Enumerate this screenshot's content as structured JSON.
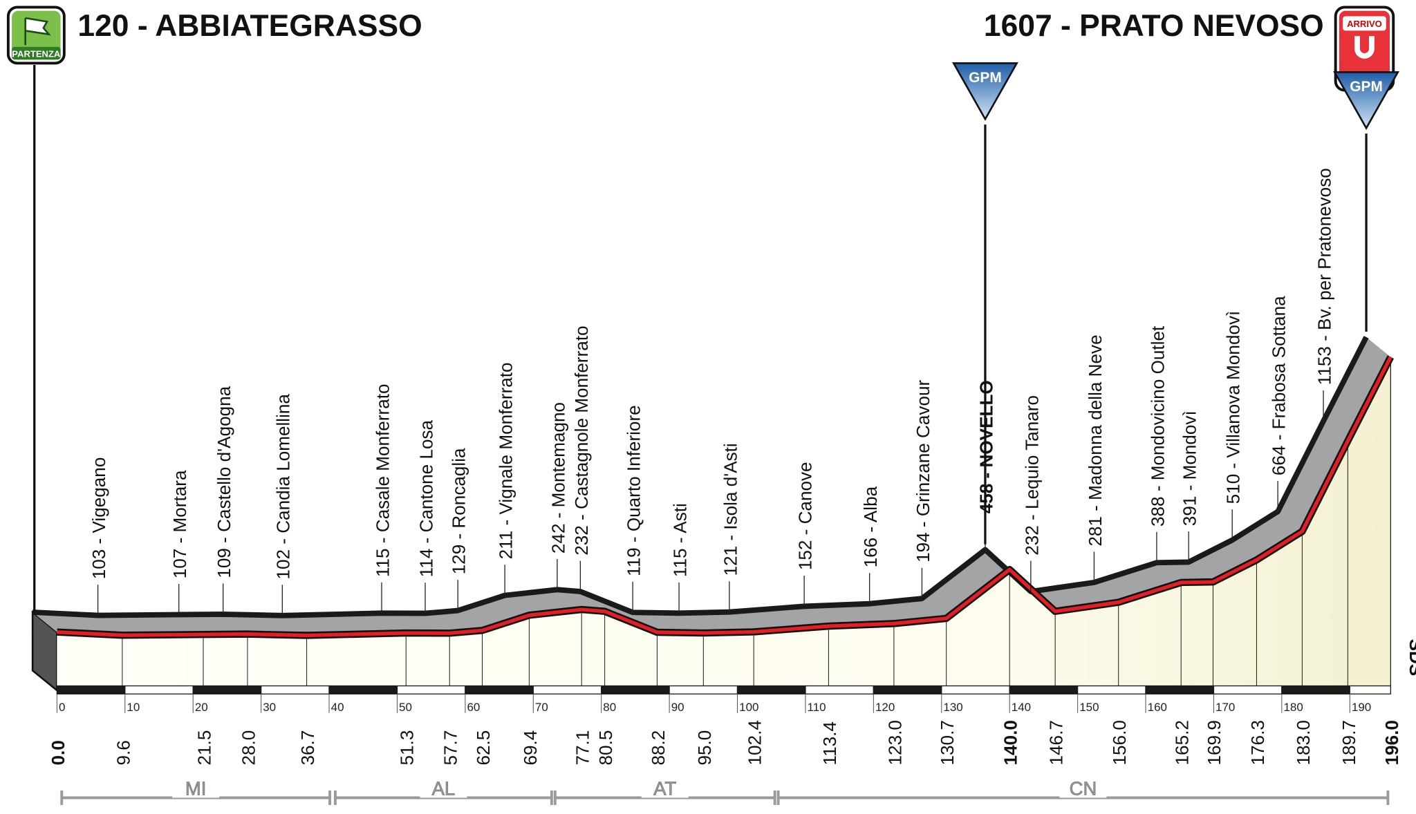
{
  "chart_data": {
    "type": "area",
    "start_badge": "PARTENZA",
    "finish_badge": "ARRIVO",
    "x": [
      0,
      9.6,
      21.5,
      28.0,
      36.7,
      51.3,
      57.7,
      62.5,
      69.4,
      77.1,
      80.5,
      88.2,
      95.0,
      102.4,
      113.4,
      123.0,
      130.7,
      140,
      146.7,
      156.0,
      165.2,
      169.9,
      176.3,
      183.0,
      189.7,
      196
    ],
    "x_labels": [
      "0.0",
      "9.6",
      "21.5",
      "28.0",
      "36.7",
      "51.3",
      "57.7",
      "62.5",
      "69.4",
      "77.1",
      "80.5",
      "88.2",
      "95.0",
      "102.4",
      "113.4",
      "123.0",
      "130.7",
      "140.0",
      "146.7",
      "156.0",
      "165.2",
      "169.9",
      "176.3",
      "183.0",
      "189.7",
      "196.0"
    ],
    "values": [
      120,
      103,
      107,
      109,
      102,
      115,
      114,
      129,
      211,
      242,
      232,
      119,
      115,
      121,
      152,
      166,
      194,
      458,
      232,
      281,
      388,
      391,
      510,
      664,
      1153,
      1607
    ],
    "value_labels": [
      "120 - ABBIATEGRASSO",
      "103 - Vigegano",
      "107 - Mortara",
      "109 - Castello d'Agogna",
      "102 - Candia Lomellina",
      "115 - Casale Monferrato",
      "114 - Cantone Losa",
      "129 - Roncaglia",
      "211 - Vignale Monferrato",
      "242 - Montemagno",
      "232 - Castagnole Monferrato",
      "119 - Quarto Inferiore",
      "115 - Asti",
      "121 - Isola d'Asti",
      "152 - Canove",
      "166 - Alba",
      "194 - Grinzane Cavour",
      "458 - NOVELLO",
      "232 - Lequio Tanaro",
      "281 - Madonna della Neve",
      "388 - Mondovicino Outlet",
      "391 - Mondovì",
      "510 - Villanova Mondovì",
      "664 - Frabosa Sottana",
      "1153 - Bv. per Pratonevoso",
      "1607 - PRATO NEVOSO"
    ],
    "bold_points": [
      0,
      17,
      25
    ],
    "xlim": [
      0,
      196
    ],
    "ylim": [
      0,
      1800
    ],
    "xticks": [
      0,
      10,
      20,
      30,
      40,
      50,
      60,
      70,
      80,
      90,
      100,
      110,
      120,
      130,
      140,
      150,
      160,
      170,
      180,
      190
    ],
    "climbs": [
      {
        "label": "GPM",
        "x": 140
      },
      {
        "label": "GPM",
        "x": 196
      }
    ],
    "regions": [
      {
        "name": "MI",
        "range": [
          0.7,
          40.1
        ]
      },
      {
        "name": "AL",
        "range": [
          40.9,
          72.7
        ]
      },
      {
        "name": "AT",
        "range": [
          73.2,
          105.5
        ]
      },
      {
        "name": "CN",
        "range": [
          106,
          195.6
        ]
      }
    ],
    "side_label": "SDS",
    "line_color": "#e31e24",
    "band_color": "#a3a4a6",
    "fill_color": "#f3f1d0"
  }
}
